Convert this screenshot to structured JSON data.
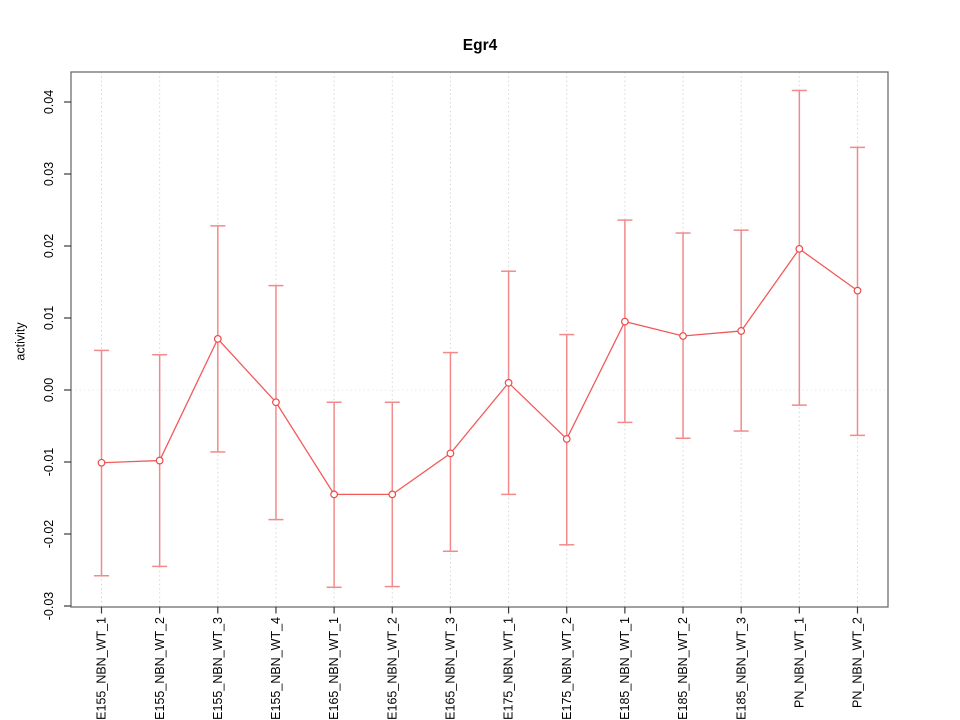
{
  "page": {
    "background": "#ffffff"
  },
  "chart_data": {
    "type": "line",
    "subtype": "points-with-error-bars",
    "title": "Egr4",
    "xlabel": "",
    "ylabel": "activity",
    "legend": "none",
    "categories": [
      "E155_NBN_WT_1",
      "E155_NBN_WT_2",
      "E155_NBN_WT_3",
      "E155_NBN_WT_4",
      "E165_NBN_WT_1",
      "E165_NBN_WT_2",
      "E165_NBN_WT_3",
      "E175_NBN_WT_1",
      "E175_NBN_WT_2",
      "E185_NBN_WT_1",
      "E185_NBN_WT_2",
      "E185_NBN_WT_3",
      "PN_NBN_WT_1",
      "PN_NBN_WT_2"
    ],
    "series": [
      {
        "name": "Egr4 activity",
        "marker": "open-circle",
        "values": [
          -0.0101,
          -0.0098,
          0.0071,
          -0.0017,
          -0.0145,
          -0.0145,
          -0.0088,
          0.001,
          -0.0068,
          0.0095,
          0.0075,
          0.0082,
          0.0196,
          0.0138
        ],
        "error_upper": [
          0.0055,
          0.0049,
          0.0228,
          0.0145,
          -0.0017,
          -0.0017,
          0.0052,
          0.0165,
          0.0077,
          0.0236,
          0.0218,
          0.0222,
          0.0416,
          0.0337
        ],
        "error_lower": [
          -0.0258,
          -0.0245,
          -0.0086,
          -0.018,
          -0.0274,
          -0.0273,
          -0.0224,
          -0.0145,
          -0.0215,
          -0.0045,
          -0.0067,
          -0.0057,
          -0.0021,
          -0.0063
        ]
      }
    ],
    "ylim": [
      -0.031,
      0.0442
    ],
    "ytick_values": [
      0.04,
      0.03,
      0.02,
      0.01,
      0.0,
      -0.01,
      -0.02,
      -0.03
    ],
    "ytick_labels": [
      "0.04",
      "0.03",
      "0.02",
      "0.01",
      "0.00",
      "-0.01",
      "-0.02",
      "-0.03"
    ],
    "grid": {
      "vertical_dotted_per_category": true,
      "zero_line_dotted": true,
      "horizontal_gridlines": false
    },
    "colors": {
      "series_line": "#f25a5a",
      "error_bar": "#f18b8b",
      "marker": "#f04848",
      "grid_line": "#d7d7d7",
      "zero_line": "#eaeaea",
      "axis_box": "#6e6e6e",
      "tick": "#3a3a3a",
      "text": "#000000"
    }
  }
}
